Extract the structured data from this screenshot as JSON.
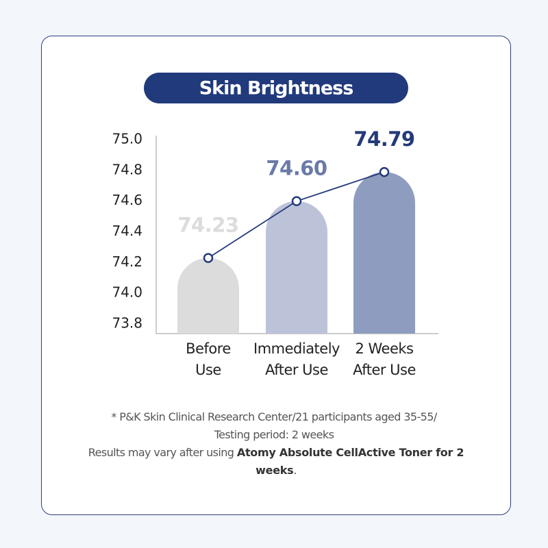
{
  "chart_data": {
    "type": "bar",
    "title": "Skin Brightness",
    "categories": [
      "Before Use",
      "Immediately After Use",
      "2 Weeks After Use"
    ],
    "values": [
      74.23,
      74.6,
      74.79
    ],
    "value_labels": [
      "74.23",
      "74.60",
      "74.79"
    ],
    "colors": [
      "#dcdcdc",
      "#bcc3d9",
      "#8e9dbf"
    ],
    "label_colors": [
      "#dcdcdc",
      "#6a7aa8",
      "#233a7a"
    ],
    "line_color": "#233a7a",
    "ylim": [
      73.8,
      75.0
    ],
    "yticks": [
      73.8,
      {
        "value": 74,
        "label": "74.0"
      },
      74.2,
      74.4,
      74.6,
      74.8,
      {
        "value": 75,
        "label": "75.0"
      }
    ]
  },
  "footnote": {
    "line1": "* P&K Skin Clinical Research Center/21 participants aged 35-55/",
    "line2": "Testing period: 2 weeks",
    "line3_start": "Results may vary after using ",
    "line3_bold": "Atomy Absolute CellActive Toner for 2 weeks",
    "line3_end": "."
  }
}
